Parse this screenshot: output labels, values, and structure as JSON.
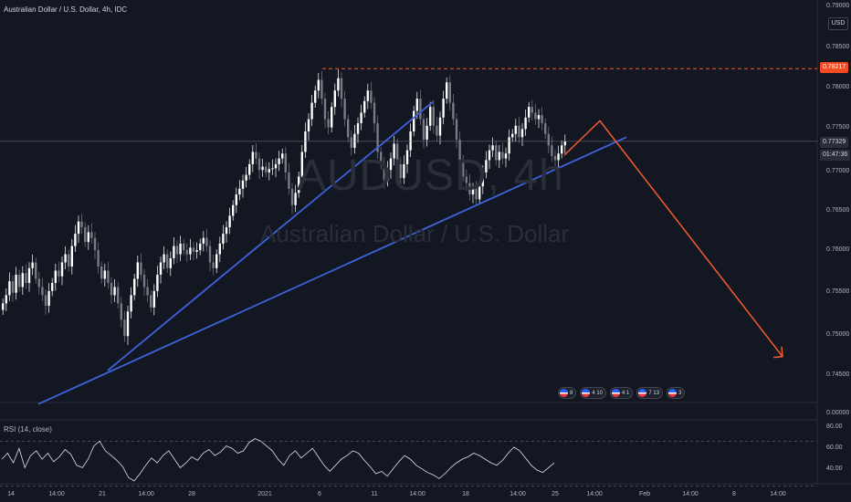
{
  "header": {
    "title": "Australian Dollar / U.S. Dollar, 4h, IDC",
    "currency_button": "USD"
  },
  "watermark": {
    "ticker": "AUDUSD, 4h",
    "description": "Australian Dollar / U.S. Dollar"
  },
  "price_axis": {
    "top_label": "0.79000",
    "ticks": [
      "0.78500",
      "0.78000",
      "0.77500",
      "0.77000",
      "0.76500",
      "0.76000",
      "0.75500",
      "0.75000",
      "0.74500",
      "0.00000"
    ],
    "target_badge": "0.78217",
    "current_badge": "0.77329",
    "countdown_badge": "01:47:36"
  },
  "time_axis": {
    "labels": [
      "14",
      "14:00",
      "21",
      "14:00",
      "28",
      "2021",
      "6",
      "11",
      "14:00",
      "18",
      "14:00",
      "25",
      "14:00",
      "Feb",
      "14:00",
      "8",
      "14:00"
    ]
  },
  "rsi": {
    "label": "RSI (14, close)",
    "levels": [
      "80.00",
      "60.00",
      "40.00"
    ]
  },
  "events": [
    {
      "label": "8"
    },
    {
      "label": "4 10"
    },
    {
      "label": "4 1"
    },
    {
      "label": "7 13"
    },
    {
      "label": "3"
    }
  ],
  "chart_data": {
    "type": "candlestick",
    "symbol": "AUDUSD",
    "timeframe": "4h",
    "ylim": [
      0.7415,
      0.79
    ],
    "close_series": [
      0.7535,
      0.7545,
      0.7562,
      0.7548,
      0.757,
      0.7555,
      0.7572,
      0.756,
      0.7578,
      0.7585,
      0.7565,
      0.7555,
      0.7545,
      0.7532,
      0.755,
      0.756,
      0.7575,
      0.7568,
      0.7585,
      0.7595,
      0.758,
      0.7605,
      0.762,
      0.7635,
      0.7628,
      0.761,
      0.7622,
      0.7615,
      0.76,
      0.758,
      0.7565,
      0.7575,
      0.756,
      0.7545,
      0.7555,
      0.7535,
      0.7515,
      0.7495,
      0.7525,
      0.7545,
      0.7565,
      0.7585,
      0.757,
      0.7555,
      0.7545,
      0.753,
      0.755,
      0.757,
      0.7585,
      0.7595,
      0.7578,
      0.759,
      0.7605,
      0.7595,
      0.7608,
      0.76,
      0.7595,
      0.7603,
      0.7598,
      0.76,
      0.7608,
      0.7615,
      0.7605,
      0.7585,
      0.7578,
      0.7595,
      0.7608,
      0.762,
      0.7628,
      0.7642,
      0.7655,
      0.7668,
      0.7675,
      0.7685,
      0.7692,
      0.7705,
      0.772,
      0.7712,
      0.7698,
      0.7702,
      0.7695,
      0.7699,
      0.77,
      0.7705,
      0.7712,
      0.7718,
      0.7695,
      0.7675,
      0.7655,
      0.767,
      0.769,
      0.772,
      0.7745,
      0.776,
      0.778,
      0.7795,
      0.7808,
      0.7785,
      0.776,
      0.775,
      0.7775,
      0.7795,
      0.781,
      0.7785,
      0.776,
      0.7738,
      0.7725,
      0.7742,
      0.7755,
      0.7768,
      0.7782,
      0.7795,
      0.778,
      0.7755,
      0.772,
      0.7705,
      0.7685,
      0.7698,
      0.7712,
      0.773,
      0.7705,
      0.7688,
      0.7705,
      0.7722,
      0.7745,
      0.777,
      0.7785,
      0.776,
      0.7735,
      0.7752,
      0.7775,
      0.7752,
      0.774,
      0.7762,
      0.7785,
      0.7805,
      0.778,
      0.776,
      0.7735,
      0.771,
      0.769,
      0.7682,
      0.7668,
      0.7675,
      0.7662,
      0.7678,
      0.7695,
      0.771,
      0.7722,
      0.7728,
      0.771,
      0.772,
      0.7712,
      0.7718,
      0.7738,
      0.7742,
      0.7752,
      0.7738,
      0.7748,
      0.7762,
      0.7775,
      0.7768,
      0.776,
      0.7765,
      0.7755,
      0.7742,
      0.7728,
      0.7715,
      0.771,
      0.7718,
      0.7728,
      0.7733
    ],
    "target_price": 0.78217,
    "current_price": 0.77329,
    "trendlines": [
      {
        "name": "steep-support",
        "from": {
          "x": "21",
          "y": 0.7453
        },
        "to": {
          "x": "14:00",
          "y": 0.7781
        },
        "color": "#3d63dd"
      },
      {
        "name": "long-support",
        "from": {
          "x": "14:00",
          "y": 0.7412
        },
        "to": {
          "x": "Feb",
          "y": 0.7738
        },
        "color": "#3d63dd"
      }
    ],
    "projection": {
      "color": "#f45b2c",
      "points": [
        {
          "label": "start",
          "y": 0.7716
        },
        {
          "label": "peak",
          "y": 0.7758
        },
        {
          "label": "target",
          "y": 0.747
        }
      ]
    },
    "rsi_series": [
      55,
      60,
      52,
      64,
      48,
      58,
      62,
      55,
      60,
      53,
      57,
      63,
      59,
      50,
      48,
      55,
      66,
      70,
      62,
      58,
      54,
      49,
      40,
      37,
      43,
      50,
      56,
      52,
      58,
      62,
      55,
      48,
      52,
      57,
      54,
      60,
      63,
      58,
      61,
      66,
      64,
      60,
      62,
      69,
      72,
      70,
      66,
      62,
      55,
      50,
      58,
      62,
      56,
      60,
      64,
      57,
      50,
      45,
      50,
      55,
      58,
      62,
      60,
      54,
      49,
      43,
      45,
      41,
      47,
      53,
      58,
      55,
      50,
      47,
      44,
      42,
      39,
      43,
      48,
      52,
      55,
      57,
      60,
      58,
      55,
      52,
      50,
      54,
      60,
      65,
      62,
      56,
      50,
      46,
      44,
      48,
      52
    ]
  }
}
